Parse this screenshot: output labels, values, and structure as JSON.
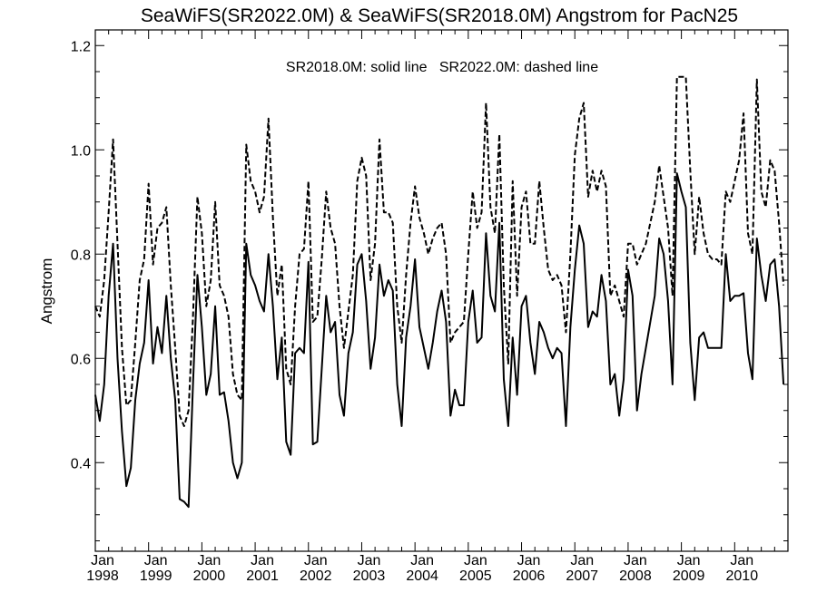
{
  "chart_data": {
    "type": "line",
    "title": "SeaWiFS(SR2022.0M) & SeaWiFS(SR2018.0M)  Angstrom for PacN25",
    "xlabel": "",
    "ylabel": "Angstrom",
    "annotation": "SR2018.0M: solid line   SR2022.0M: dashed line",
    "xlim": [
      "1998-01",
      "2010-12"
    ],
    "ylim": [
      0.23,
      1.23
    ],
    "grid": false,
    "legend": "none",
    "y_ticks": [
      0.4,
      0.6,
      0.8,
      1.0,
      1.2
    ],
    "y_tick_labels": [
      "0.4",
      "0.6",
      "0.8",
      "1.0",
      "1.2"
    ],
    "x_ticks": [
      {
        "month": "Jan",
        "year": "1998"
      },
      {
        "month": "Jan",
        "year": "1999"
      },
      {
        "month": "Jan",
        "year": "2000"
      },
      {
        "month": "Jan",
        "year": "2001"
      },
      {
        "month": "Jan",
        "year": "2002"
      },
      {
        "month": "Jan",
        "year": "2003"
      },
      {
        "month": "Jan",
        "year": "2004"
      },
      {
        "month": "Jan",
        "year": "2005"
      },
      {
        "month": "Jan",
        "year": "2006"
      },
      {
        "month": "Jan",
        "year": "2007"
      },
      {
        "month": "Jan",
        "year": "2008"
      },
      {
        "month": "Jan",
        "year": "2009"
      },
      {
        "month": "Jan",
        "year": "2010"
      }
    ],
    "series": [
      {
        "style": "solid",
        "color": "#000000",
        "x": [
          "1998-01",
          "1998-02",
          "1998-03",
          "1998-04",
          "1998-05",
          "1998-06",
          "1998-07",
          "1998-08",
          "1998-09",
          "1998-10",
          "1998-11",
          "1998-12",
          "1999-01",
          "1999-02",
          "1999-03",
          "1999-04",
          "1999-05",
          "1999-06",
          "1999-07",
          "1999-08",
          "1999-09",
          "1999-10",
          "1999-11",
          "1999-12",
          "2000-01",
          "2000-02",
          "2000-03",
          "2000-04",
          "2000-05",
          "2000-06",
          "2000-07",
          "2000-08",
          "2000-09",
          "2000-10",
          "2000-11",
          "2000-12",
          "2001-01",
          "2001-02",
          "2001-03",
          "2001-04",
          "2001-05",
          "2001-06",
          "2001-07",
          "2001-08",
          "2001-09",
          "2001-10",
          "2001-11",
          "2001-12",
          "2002-01",
          "2002-02",
          "2002-03",
          "2002-04",
          "2002-05",
          "2002-06",
          "2002-07",
          "2002-08",
          "2002-09",
          "2002-10",
          "2002-11",
          "2002-12",
          "2003-01",
          "2003-02",
          "2003-03",
          "2003-04",
          "2003-05",
          "2003-06",
          "2003-07",
          "2003-08",
          "2003-09",
          "2003-10",
          "2003-11",
          "2003-12",
          "2004-01",
          "2004-02",
          "2004-03",
          "2004-04",
          "2004-05",
          "2004-06",
          "2004-07",
          "2004-08",
          "2004-09",
          "2004-10",
          "2004-11",
          "2004-12",
          "2005-01",
          "2005-02",
          "2005-03",
          "2005-04",
          "2005-05",
          "2005-06",
          "2005-07",
          "2005-08",
          "2005-09",
          "2005-10",
          "2005-11",
          "2005-12",
          "2006-01",
          "2006-02",
          "2006-03",
          "2006-04",
          "2006-05",
          "2006-06",
          "2006-07",
          "2006-08",
          "2006-09",
          "2006-10",
          "2006-11",
          "2006-12",
          "2007-01",
          "2007-02",
          "2007-03",
          "2007-04",
          "2007-05",
          "2007-06",
          "2007-07",
          "2007-08",
          "2007-09",
          "2007-10",
          "2007-11",
          "2007-12",
          "2008-01",
          "2008-02",
          "2008-03",
          "2008-04",
          "2008-05",
          "2008-06",
          "2008-07",
          "2008-08",
          "2008-09",
          "2008-10",
          "2008-11",
          "2008-12",
          "2009-01",
          "2009-02",
          "2009-03",
          "2009-04",
          "2009-05",
          "2009-06",
          "2009-07",
          "2009-08",
          "2009-09",
          "2009-10",
          "2009-11",
          "2009-12",
          "2010-01",
          "2010-02",
          "2010-03",
          "2010-04",
          "2010-05",
          "2010-06",
          "2010-07",
          "2010-08",
          "2010-09",
          "2010-10",
          "2010-11",
          "2010-12"
        ],
        "values": [
          0.53,
          0.48,
          0.55,
          0.72,
          0.82,
          0.6,
          0.46,
          0.355,
          0.39,
          0.52,
          0.59,
          0.63,
          0.75,
          0.59,
          0.66,
          0.61,
          0.72,
          0.6,
          0.52,
          0.33,
          0.325,
          0.315,
          0.55,
          0.76,
          0.66,
          0.53,
          0.57,
          0.7,
          0.53,
          0.535,
          0.48,
          0.4,
          0.37,
          0.4,
          0.82,
          0.76,
          0.74,
          0.71,
          0.69,
          0.8,
          0.7,
          0.56,
          0.64,
          0.44,
          0.415,
          0.61,
          0.62,
          0.61,
          0.785,
          0.435,
          0.44,
          0.58,
          0.72,
          0.65,
          0.67,
          0.53,
          0.49,
          0.61,
          0.65,
          0.78,
          0.8,
          0.71,
          0.58,
          0.64,
          0.78,
          0.72,
          0.75,
          0.73,
          0.55,
          0.47,
          0.64,
          0.7,
          0.79,
          0.66,
          0.62,
          0.58,
          0.63,
          0.69,
          0.73,
          0.67,
          0.49,
          0.54,
          0.51,
          0.51,
          0.67,
          0.73,
          0.63,
          0.64,
          0.84,
          0.72,
          0.69,
          0.86,
          0.56,
          0.47,
          0.64,
          0.53,
          0.7,
          0.72,
          0.63,
          0.57,
          0.67,
          0.65,
          0.62,
          0.6,
          0.62,
          0.61,
          0.47,
          0.66,
          0.77,
          0.855,
          0.82,
          0.66,
          0.69,
          0.68,
          0.76,
          0.71,
          0.55,
          0.57,
          0.49,
          0.56,
          0.77,
          0.72,
          0.5,
          0.57,
          0.62,
          0.67,
          0.72,
          0.83,
          0.8,
          0.71,
          0.55,
          0.955,
          0.92,
          0.89,
          0.63,
          0.52,
          0.64,
          0.65,
          0.62,
          0.62,
          0.62,
          0.62,
          0.8,
          0.71,
          0.72,
          0.72,
          0.725,
          0.61,
          0.56,
          0.83,
          0.76,
          0.71,
          0.78,
          0.79,
          0.7,
          0.55
        ]
      },
      {
        "style": "dashed",
        "color": "#000000",
        "x": [
          "1998-01",
          "1998-02",
          "1998-03",
          "1998-04",
          "1998-05",
          "1998-06",
          "1998-07",
          "1998-08",
          "1998-09",
          "1998-10",
          "1998-11",
          "1998-12",
          "1999-01",
          "1999-02",
          "1999-03",
          "1999-04",
          "1999-05",
          "1999-06",
          "1999-07",
          "1999-08",
          "1999-09",
          "1999-10",
          "1999-11",
          "1999-12",
          "2000-01",
          "2000-02",
          "2000-03",
          "2000-04",
          "2000-05",
          "2000-06",
          "2000-07",
          "2000-08",
          "2000-09",
          "2000-10",
          "2000-11",
          "2000-12",
          "2001-01",
          "2001-02",
          "2001-03",
          "2001-04",
          "2001-05",
          "2001-06",
          "2001-07",
          "2001-08",
          "2001-09",
          "2001-10",
          "2001-11",
          "2001-12",
          "2002-01",
          "2002-02",
          "2002-03",
          "2002-04",
          "2002-05",
          "2002-06",
          "2002-07",
          "2002-08",
          "2002-09",
          "2002-10",
          "2002-11",
          "2002-12",
          "2003-01",
          "2003-02",
          "2003-03",
          "2003-04",
          "2003-05",
          "2003-06",
          "2003-07",
          "2003-08",
          "2003-09",
          "2003-10",
          "2003-11",
          "2003-12",
          "2004-01",
          "2004-02",
          "2004-03",
          "2004-04",
          "2004-05",
          "2004-06",
          "2004-07",
          "2004-08",
          "2004-09",
          "2004-10",
          "2004-11",
          "2004-12",
          "2005-01",
          "2005-02",
          "2005-03",
          "2005-04",
          "2005-05",
          "2005-06",
          "2005-07",
          "2005-08",
          "2005-09",
          "2005-10",
          "2005-11",
          "2005-12",
          "2006-01",
          "2006-02",
          "2006-03",
          "2006-04",
          "2006-05",
          "2006-06",
          "2006-07",
          "2006-08",
          "2006-09",
          "2006-10",
          "2006-11",
          "2006-12",
          "2007-01",
          "2007-02",
          "2007-03",
          "2007-04",
          "2007-05",
          "2007-06",
          "2007-07",
          "2007-08",
          "2007-09",
          "2007-10",
          "2007-11",
          "2007-12",
          "2008-01",
          "2008-02",
          "2008-03",
          "2008-04",
          "2008-05",
          "2008-06",
          "2008-07",
          "2008-08",
          "2008-09",
          "2008-10",
          "2008-11",
          "2008-12",
          "2009-01",
          "2009-02",
          "2009-03",
          "2009-04",
          "2009-05",
          "2009-06",
          "2009-07",
          "2009-08",
          "2009-09",
          "2009-10",
          "2009-11",
          "2009-12",
          "2010-01",
          "2010-02",
          "2010-03",
          "2010-04",
          "2010-05",
          "2010-06",
          "2010-07",
          "2010-08",
          "2010-09",
          "2010-10",
          "2010-11",
          "2010-12"
        ],
        "values": [
          0.7,
          0.68,
          0.75,
          0.88,
          1.02,
          0.82,
          0.62,
          0.51,
          0.52,
          0.63,
          0.75,
          0.79,
          0.935,
          0.78,
          0.85,
          0.86,
          0.89,
          0.74,
          0.62,
          0.49,
          0.47,
          0.5,
          0.68,
          0.91,
          0.84,
          0.7,
          0.75,
          0.9,
          0.74,
          0.72,
          0.68,
          0.57,
          0.53,
          0.52,
          1.01,
          0.94,
          0.92,
          0.88,
          0.91,
          1.06,
          0.87,
          0.72,
          0.78,
          0.58,
          0.55,
          0.7,
          0.8,
          0.81,
          0.94,
          0.67,
          0.68,
          0.79,
          0.92,
          0.85,
          0.82,
          0.7,
          0.62,
          0.69,
          0.76,
          0.94,
          0.985,
          0.95,
          0.75,
          0.82,
          1.02,
          0.88,
          0.88,
          0.86,
          0.7,
          0.63,
          0.76,
          0.86,
          0.93,
          0.87,
          0.84,
          0.8,
          0.83,
          0.85,
          0.86,
          0.8,
          0.63,
          0.65,
          0.66,
          0.67,
          0.8,
          0.92,
          0.85,
          0.88,
          1.09,
          0.89,
          0.84,
          1.03,
          0.74,
          0.59,
          0.94,
          0.72,
          0.89,
          0.92,
          0.82,
          0.82,
          0.94,
          0.85,
          0.77,
          0.75,
          0.76,
          0.74,
          0.65,
          0.8,
          0.99,
          1.06,
          1.09,
          0.91,
          0.96,
          0.92,
          0.96,
          0.93,
          0.72,
          0.74,
          0.71,
          0.68,
          0.82,
          0.82,
          0.78,
          0.8,
          0.82,
          0.86,
          0.9,
          0.97,
          0.91,
          0.85,
          0.72,
          1.14,
          1.14,
          1.14,
          0.96,
          0.8,
          0.91,
          0.84,
          0.8,
          0.79,
          0.79,
          0.78,
          0.92,
          0.9,
          0.94,
          0.98,
          1.07,
          0.84,
          0.8,
          1.135,
          0.92,
          0.89,
          0.98,
          0.96,
          0.86,
          0.74
        ]
      }
    ]
  }
}
